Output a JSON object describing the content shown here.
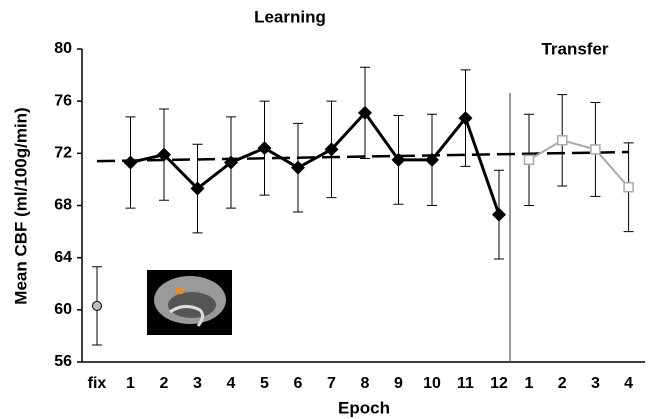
{
  "chart_data": {
    "type": "line",
    "title": "Learning",
    "subtitle": "Transfer",
    "x_label": "Epoch",
    "y_label": "Mean CBF (ml/100g/min)",
    "categories": [
      "fix",
      "1",
      "2",
      "3",
      "4",
      "5",
      "6",
      "7",
      "8",
      "9",
      "10",
      "11",
      "12",
      "1",
      "2",
      "3",
      "4"
    ],
    "ylim": [
      56,
      80
    ],
    "yticks": [
      56,
      60,
      64,
      68,
      72,
      76,
      80
    ],
    "series": [
      {
        "name": "fix",
        "color": "#c0c0c0",
        "marker": "circle",
        "values": [
          60.3,
          null,
          null,
          null,
          null,
          null,
          null,
          null,
          null,
          null,
          null,
          null,
          null,
          null,
          null,
          null,
          null
        ],
        "errors": [
          3.0,
          null,
          null,
          null,
          null,
          null,
          null,
          null,
          null,
          null,
          null,
          null,
          null,
          null,
          null,
          null,
          null
        ]
      },
      {
        "name": "Learning",
        "color": "#000000",
        "marker": "diamond",
        "values": [
          null,
          71.3,
          71.9,
          69.3,
          71.3,
          72.4,
          70.9,
          72.3,
          75.1,
          71.5,
          71.5,
          74.7,
          67.3,
          null,
          null,
          null,
          null
        ],
        "errors": [
          null,
          3.5,
          3.5,
          3.4,
          3.5,
          3.6,
          3.4,
          3.7,
          3.5,
          3.4,
          3.5,
          3.7,
          3.4,
          null,
          null,
          null,
          null
        ]
      },
      {
        "name": "Transfer",
        "color": "#aaaaaa",
        "marker": "square",
        "values": [
          null,
          null,
          null,
          null,
          null,
          null,
          null,
          null,
          null,
          null,
          null,
          null,
          null,
          71.5,
          73.0,
          72.3,
          69.4
        ],
        "errors": [
          null,
          null,
          null,
          null,
          null,
          null,
          null,
          null,
          null,
          null,
          null,
          null,
          null,
          3.5,
          3.5,
          3.6,
          3.4
        ]
      }
    ],
    "trend": {
      "start": 71.4,
      "end": 72.1
    }
  }
}
